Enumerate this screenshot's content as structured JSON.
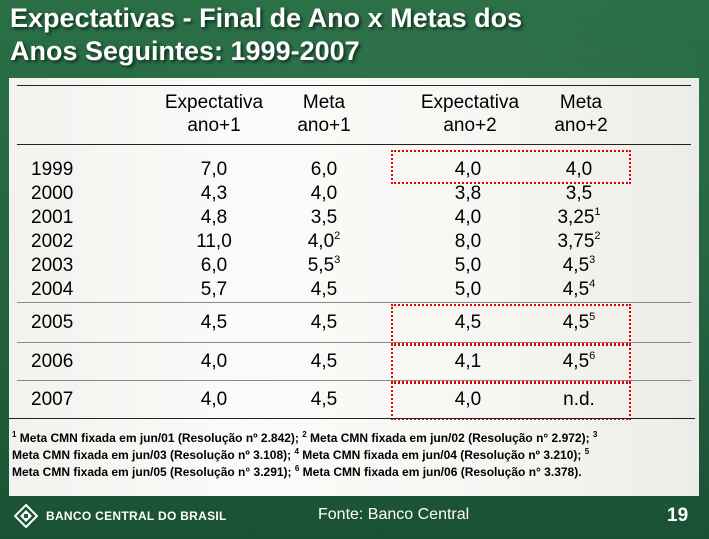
{
  "title": {
    "line1": "Expectativas - Final de Ano x Metas dos",
    "line2": "Anos Seguintes: 1999-2007"
  },
  "table": {
    "headers": [
      {
        "l1": "Expectativa",
        "l2": "ano+1"
      },
      {
        "l1": "Meta",
        "l2": "ano+1"
      },
      {
        "l1": "Expectativa",
        "l2": "ano+2"
      },
      {
        "l1": "Meta",
        "l2": "ano+2"
      }
    ],
    "rows": [
      {
        "year": "1999",
        "cells": [
          {
            "v": "7,0",
            "s": ""
          },
          {
            "v": "6,0",
            "s": ""
          },
          {
            "v": "4,0",
            "s": ""
          },
          {
            "v": "4,0",
            "s": ""
          }
        ]
      },
      {
        "year": "2000",
        "cells": [
          {
            "v": "4,3",
            "s": ""
          },
          {
            "v": "4,0",
            "s": ""
          },
          {
            "v": "3,8",
            "s": ""
          },
          {
            "v": "3,5",
            "s": ""
          }
        ]
      },
      {
        "year": "2001",
        "cells": [
          {
            "v": "4,8",
            "s": ""
          },
          {
            "v": "3,5",
            "s": ""
          },
          {
            "v": "4,0",
            "s": ""
          },
          {
            "v": "3,25",
            "s": "1"
          }
        ]
      },
      {
        "year": "2002",
        "cells": [
          {
            "v": "11,0",
            "s": ""
          },
          {
            "v": "4,0",
            "s": "2"
          },
          {
            "v": "8,0",
            "s": ""
          },
          {
            "v": "3,75",
            "s": "2"
          }
        ]
      },
      {
        "year": "2003",
        "cells": [
          {
            "v": "6,0",
            "s": ""
          },
          {
            "v": "5,5",
            "s": "3"
          },
          {
            "v": "5,0",
            "s": ""
          },
          {
            "v": "4,5",
            "s": "3"
          }
        ]
      },
      {
        "year": "2004",
        "cells": [
          {
            "v": "5,7",
            "s": ""
          },
          {
            "v": "4,5",
            "s": ""
          },
          {
            "v": "5,0",
            "s": ""
          },
          {
            "v": "4,5",
            "s": "4"
          }
        ]
      },
      {
        "year": "2005",
        "cells": [
          {
            "v": "4,5",
            "s": ""
          },
          {
            "v": "4,5",
            "s": ""
          },
          {
            "v": "4,5",
            "s": ""
          },
          {
            "v": "4,5",
            "s": "5"
          }
        ]
      },
      {
        "year": "2006",
        "cells": [
          {
            "v": "4,0",
            "s": ""
          },
          {
            "v": "4,5",
            "s": ""
          },
          {
            "v": "4,1",
            "s": ""
          },
          {
            "v": "4,5",
            "s": "6"
          }
        ]
      },
      {
        "year": "2007",
        "cells": [
          {
            "v": "4,0",
            "s": ""
          },
          {
            "v": "4,5",
            "s": ""
          },
          {
            "v": "4,0",
            "s": ""
          },
          {
            "v": "n.d.",
            "s": ""
          }
        ]
      }
    ],
    "highlight_color": "#e00000"
  },
  "footnotes": {
    "l1_m1": "1",
    "l1_a": " Meta CMN fixada em jun/01 (Resolução nº 2.842); ",
    "l1_m2": "2",
    "l1_b": " Meta CMN fixada em jun/02 (Resolução n° 2.972); ",
    "l1_m3": "3",
    "l2_a": "Meta CMN fixada em jun/03 (Resolução nº 3.108); ",
    "l2_m4": "4",
    "l2_b": " Meta CMN fixada em jun/04 (Resolução nº 3.210); ",
    "l2_m5": "5",
    "l3_a": "Meta CMN fixada em jun/05 (Resolução n° 3.291); ",
    "l3_m6": "6",
    "l3_b": " Meta CMN fixada em jun/06 (Resolução n° 3.378)."
  },
  "footer": {
    "bank_name": "BANCO CENTRAL DO BRASIL",
    "source": "Fonte: Banco Central",
    "page_number": "19",
    "logo_icon": "banco-central-logo"
  }
}
